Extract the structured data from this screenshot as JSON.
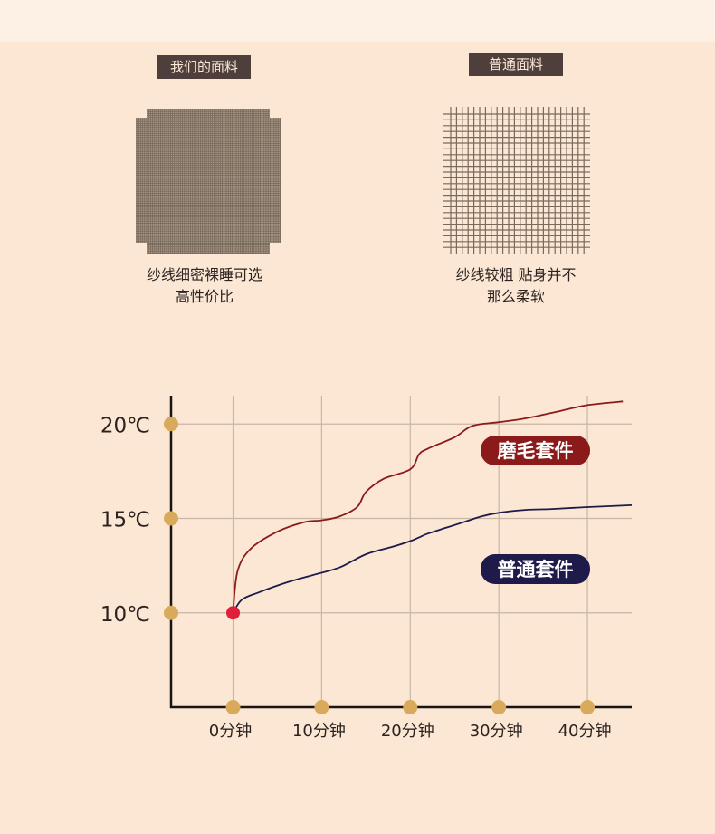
{
  "fabrics": {
    "ours": {
      "label": "我们的面料",
      "caption_line1": "纱线细密裸睡可选",
      "caption_line2": "高性价比"
    },
    "common": {
      "label": "普通面料",
      "caption_line1": "纱线较粗 贴身并不",
      "caption_line2": "那么柔软"
    }
  },
  "colors": {
    "background": "#fbe7d4",
    "label_bg": "#4e3f3d",
    "brushed_series": "#8b1a1a",
    "regular_series": "#1e1b4b",
    "marker": "#d9a95c",
    "start_point": "#e0203a"
  },
  "chart_data": {
    "type": "line",
    "title": "",
    "xlabel": "",
    "ylabel": "",
    "x_ticks": [
      0,
      10,
      20,
      30,
      40
    ],
    "x_tick_labels": [
      "0分钟",
      "10分钟",
      "20分钟",
      "30分钟",
      "40分钟"
    ],
    "y_ticks": [
      10,
      15,
      20
    ],
    "y_tick_labels": [
      "10℃",
      "15℃",
      "20℃"
    ],
    "xlim": [
      -7,
      45
    ],
    "ylim": [
      5,
      21.5
    ],
    "grid": true,
    "series": [
      {
        "name": "磨毛套件",
        "x": [
          0,
          0.5,
          2,
          5,
          8,
          10,
          12,
          14,
          15,
          17,
          20,
          21,
          22,
          25,
          27,
          30,
          33,
          37,
          40,
          44
        ],
        "y": [
          10,
          12.2,
          13.4,
          14.3,
          14.8,
          14.9,
          15.1,
          15.6,
          16.4,
          17.1,
          17.6,
          18.4,
          18.7,
          19.3,
          19.9,
          20.1,
          20.3,
          20.7,
          21.0,
          21.2
        ],
        "color": "#8b1a1a"
      },
      {
        "name": "普通套件",
        "x": [
          0,
          1,
          3,
          6,
          9,
          12,
          15,
          18,
          20,
          21,
          22,
          24,
          26,
          28,
          30,
          33,
          36,
          40,
          45
        ],
        "y": [
          10,
          10.7,
          11.1,
          11.6,
          12.0,
          12.4,
          13.1,
          13.5,
          13.8,
          14.0,
          14.2,
          14.5,
          14.8,
          15.1,
          15.3,
          15.45,
          15.5,
          15.6,
          15.7
        ],
        "color": "#1e1b4b"
      }
    ],
    "start_point": {
      "x": 0,
      "y": 10
    }
  }
}
